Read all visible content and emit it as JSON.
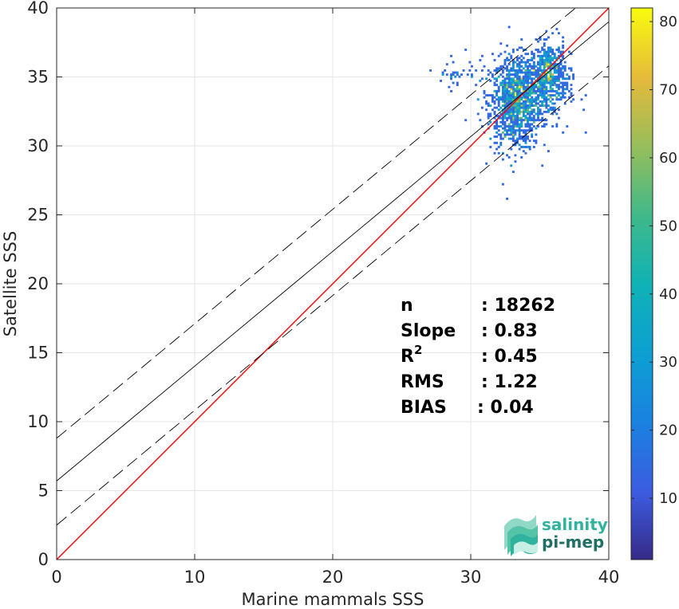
{
  "chart_data": {
    "type": "scatter",
    "xlabel": "Marine mammals SSS",
    "ylabel": "Satellite SSS",
    "xlim": [
      0,
      40
    ],
    "ylim": [
      0,
      40
    ],
    "xticks": [
      0,
      10,
      20,
      30,
      40
    ],
    "yticks": [
      0,
      5,
      10,
      15,
      20,
      25,
      30,
      35,
      40
    ],
    "grid": true,
    "colorbar": {
      "range": [
        1,
        82
      ],
      "ticks": [
        10,
        20,
        30,
        40,
        50,
        60,
        70,
        80
      ],
      "colormap": "parula"
    },
    "lines": [
      {
        "style": "identity",
        "color": "#ff0000",
        "x": [
          0,
          40
        ],
        "y": [
          0,
          40
        ]
      },
      {
        "style": "regression",
        "color": "#000000",
        "x": [
          0,
          40
        ],
        "y": [
          5.7,
          39.0
        ]
      },
      {
        "style": "upper-bound-dashed",
        "color": "#000000",
        "x": [
          0,
          40
        ],
        "y": [
          8.8,
          42.0
        ]
      },
      {
        "style": "lower-bound-dashed",
        "color": "#000000",
        "x": [
          0,
          40
        ],
        "y": [
          2.5,
          35.8
        ]
      }
    ],
    "density_clusters": [
      {
        "cx": 33.2,
        "cy": 33.0,
        "sx": 0.9,
        "sy": 1.7,
        "n": 900,
        "peak": 82
      },
      {
        "cx": 35.7,
        "cy": 35.3,
        "sx": 0.6,
        "sy": 1.1,
        "n": 450,
        "peak": 45
      },
      {
        "cx": 34.3,
        "cy": 34.0,
        "sx": 1.4,
        "sy": 1.4,
        "n": 500,
        "peak": 20
      },
      {
        "cx": 29.0,
        "cy": 35.3,
        "sx": 0.8,
        "sy": 0.5,
        "n": 40,
        "peak": 4
      }
    ],
    "stats": [
      {
        "label": "n",
        "sep": ": 18262"
      },
      {
        "label": "Slope",
        "sep": ": 0.83"
      },
      {
        "label": "R",
        "sup": "2",
        "sep": ": 0.45"
      },
      {
        "label": "RMS",
        "sep": ": 1.22"
      },
      {
        "label": "BIAS",
        "sep": ": 0.04"
      }
    ]
  },
  "logo": {
    "line1": "salinity",
    "line2": "pi-mep",
    "color": "#2fb39e"
  }
}
